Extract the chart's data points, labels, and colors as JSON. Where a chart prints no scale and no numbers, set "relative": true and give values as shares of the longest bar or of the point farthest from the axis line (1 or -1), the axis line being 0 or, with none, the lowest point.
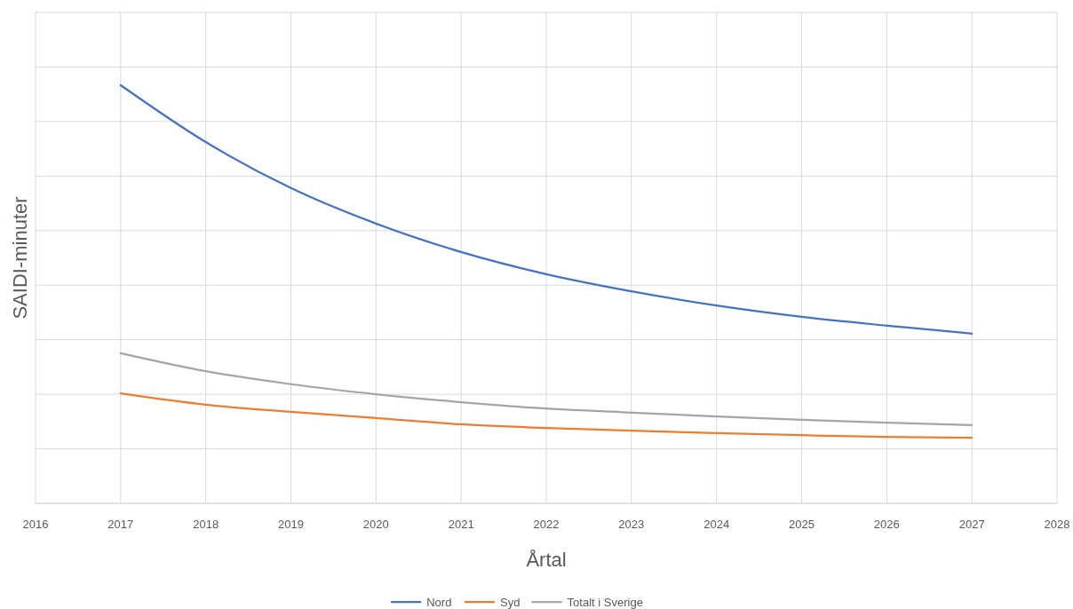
{
  "chart_data": {
    "type": "line",
    "xlabel": "Årtal",
    "ylabel": "SAIDI-minuter",
    "relative": true,
    "x": [
      2017,
      2018,
      2019,
      2020,
      2021,
      2022,
      2023,
      2024,
      2025,
      2026,
      2027
    ],
    "xlim": [
      2016,
      2028
    ],
    "xticks": [
      2016,
      2017,
      2018,
      2019,
      2020,
      2021,
      2022,
      2023,
      2024,
      2025,
      2026,
      2027,
      2028
    ],
    "grid": true,
    "legend": "bottom",
    "marker": "none",
    "line_style": "solid",
    "series": [
      {
        "name": "Nord",
        "color": "#4472c4",
        "values": [
          1,
          0.864,
          0.754,
          0.669,
          0.601,
          0.548,
          0.507,
          0.473,
          0.446,
          0.425,
          0.406
        ]
      },
      {
        "name": "Syd",
        "color": "#ed7d31",
        "values": [
          0.263,
          0.236,
          0.219,
          0.204,
          0.189,
          0.18,
          0.174,
          0.168,
          0.163,
          0.159,
          0.157
        ]
      },
      {
        "name": "Totalt i Sverige",
        "color": "#a5a5a5",
        "values": [
          0.359,
          0.316,
          0.285,
          0.261,
          0.242,
          0.227,
          0.217,
          0.208,
          0.2,
          0.193,
          0.187
        ]
      }
    ]
  }
}
